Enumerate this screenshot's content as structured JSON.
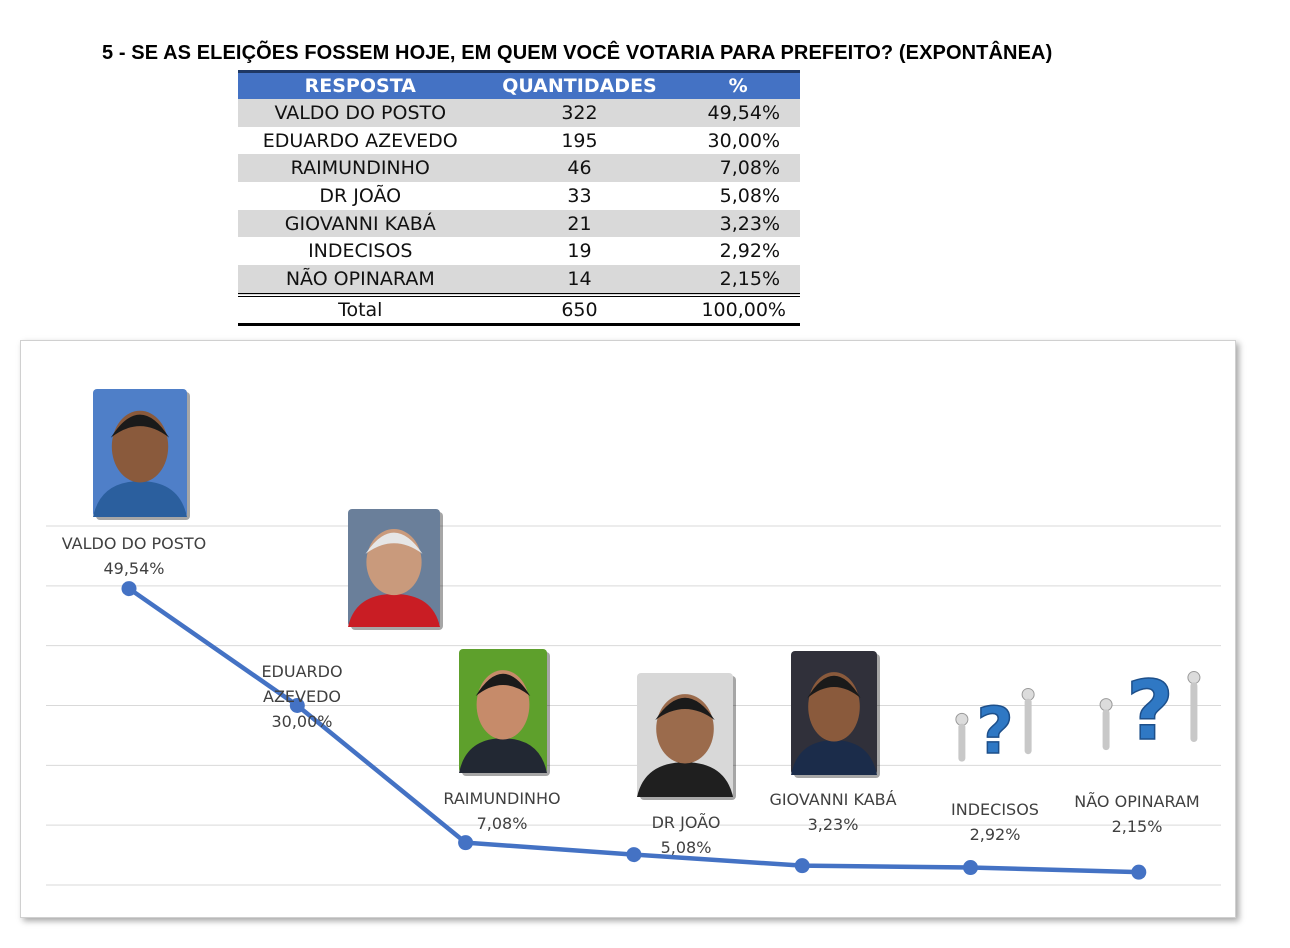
{
  "title": "5 - SE AS ELEIÇÕES FOSSEM HOJE, EM QUEM VOCÊ VOTARIA PARA PREFEITO? (EXPONTÂNEA)",
  "table": {
    "headers": [
      "RESPOSTA",
      "QUANTIDADES",
      "%"
    ],
    "rows": [
      {
        "name": "VALDO DO POSTO",
        "qty": "322",
        "pct": "49,54%"
      },
      {
        "name": "EDUARDO AZEVEDO",
        "qty": "195",
        "pct": "30,00%"
      },
      {
        "name": "RAIMUNDINHO",
        "qty": "46",
        "pct": "7,08%"
      },
      {
        "name": "DR JOÃO",
        "qty": "33",
        "pct": "5,08%"
      },
      {
        "name": "GIOVANNI KABÁ",
        "qty": "21",
        "pct": "3,23%"
      },
      {
        "name": "INDECISOS",
        "qty": "19",
        "pct": "2,92%"
      },
      {
        "name": "NÃO OPINARAM",
        "qty": "14",
        "pct": "2,15%"
      }
    ],
    "total": {
      "name": "Total",
      "qty": "650",
      "pct": "100,00%"
    }
  },
  "chart_data": {
    "type": "line",
    "categories": [
      "VALDO DO POSTO",
      "EDUARDO AZEVEDO",
      "RAIMUNDINHO",
      "DR JOÃO",
      "GIOVANNI KABÁ",
      "INDECISOS",
      "NÃO OPINARAM"
    ],
    "values": [
      49.54,
      30.0,
      7.08,
      5.08,
      3.23,
      2.92,
      2.15
    ],
    "data_labels": [
      "49,54%",
      "30,00%",
      "7,08%",
      "5,08%",
      "3,23%",
      "2,92%",
      "2,15%"
    ],
    "label_lines": [
      [
        "VALDO DO POSTO",
        "49,54%"
      ],
      [
        "EDUARDO",
        "AZEVEDO",
        "30,00%"
      ],
      [
        "RAIMUNDINHO",
        "7,08%"
      ],
      [
        "DR JOÃO",
        "5,08%"
      ],
      [
        "GIOVANNI KABÁ",
        "3,23%"
      ],
      [
        "INDECISOS",
        "2,92%"
      ],
      [
        "NÃO OPINARAM",
        "2,15%"
      ]
    ],
    "ylim": [
      0,
      60
    ],
    "grid": true,
    "line_color": "#4472c4",
    "title": "",
    "xlabel": "",
    "ylabel": "",
    "pictures": [
      "person-photo",
      "person-photo",
      "person-photo",
      "person-photo",
      "person-photo",
      "question-mark-figure",
      "question-mark-figure"
    ]
  }
}
